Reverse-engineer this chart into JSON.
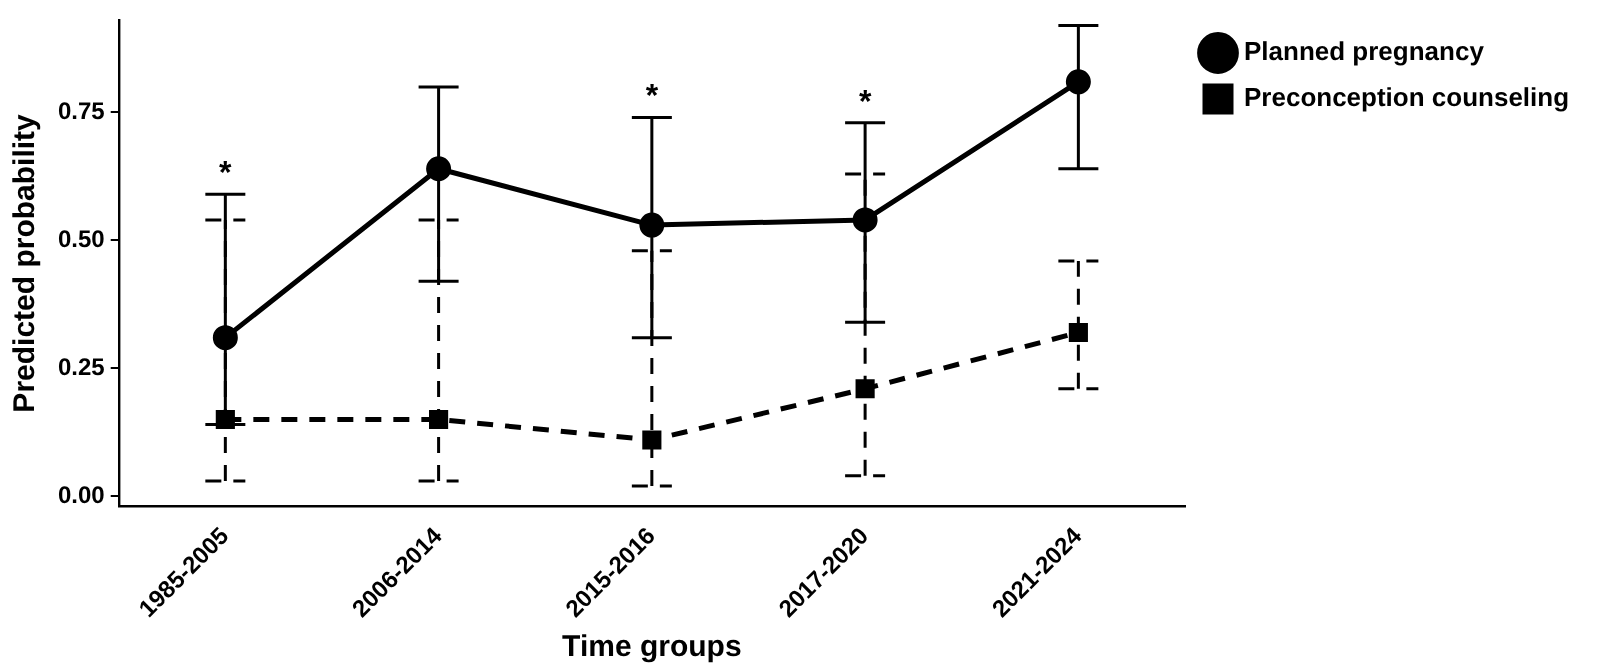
{
  "chart_data": {
    "type": "line",
    "xlabel": "Time groups",
    "ylabel": "Predicted probability",
    "categories": [
      "1985-2005",
      "2006-2014",
      "2015-2016",
      "2017-2020",
      "2021-2024"
    ],
    "series": [
      {
        "name": "Planned pregnancy",
        "color": "#000000",
        "marker": "circle",
        "line_style": "solid",
        "values": [
          0.31,
          0.64,
          0.53,
          0.54,
          0.81
        ],
        "errors": [
          [
            0.14,
            0.59
          ],
          [
            0.42,
            0.8
          ],
          [
            0.31,
            0.74
          ],
          [
            0.34,
            0.73
          ],
          [
            0.64,
            0.92
          ]
        ]
      },
      {
        "name": "Preconception counseling",
        "color": "#000000",
        "marker": "square",
        "line_style": "dashed",
        "values": [
          0.15,
          0.15,
          0.11,
          0.21,
          0.32
        ],
        "errors": [
          [
            0.03,
            0.54
          ],
          [
            0.03,
            0.54
          ],
          [
            0.02,
            0.48
          ],
          [
            0.04,
            0.63
          ],
          [
            0.21,
            0.46
          ]
        ]
      }
    ],
    "annotations": [
      {
        "text": "*",
        "x": "1985-2005",
        "y": 0.59
      },
      {
        "text": "*",
        "x": "2015-2016",
        "y": 0.74
      },
      {
        "text": "*",
        "x": "2017-2020",
        "y": 0.73
      }
    ],
    "ylim": [
      -0.02,
      0.93
    ],
    "yticks": [
      {
        "value": 0,
        "label": "0.00"
      },
      {
        "value": 0.25,
        "label": "0.25"
      },
      {
        "value": 0.5,
        "label": "0.50"
      },
      {
        "value": 0.75,
        "label": "0.75"
      }
    ],
    "grid": false,
    "legend": "top right"
  }
}
